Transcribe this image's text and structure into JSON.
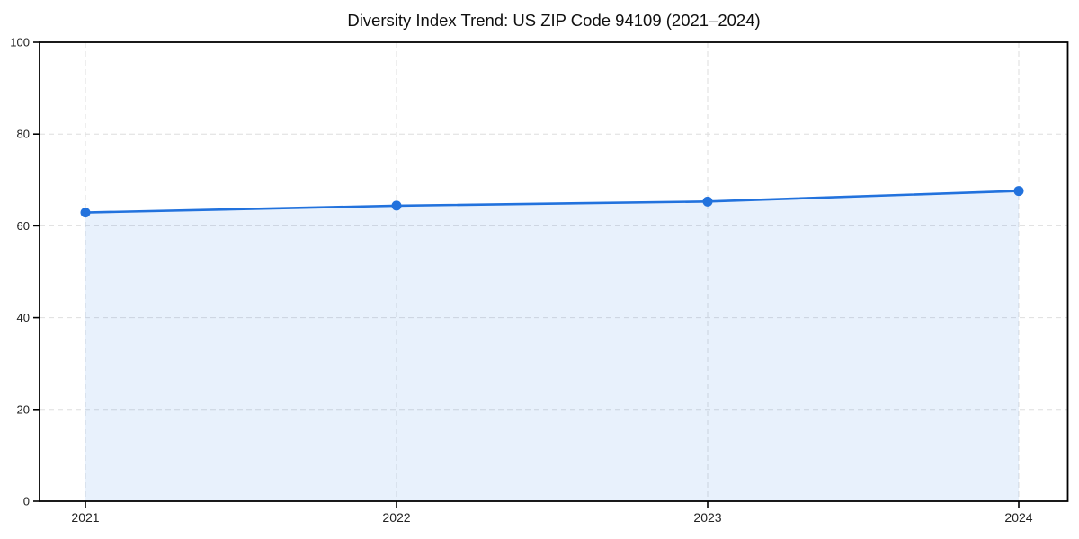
{
  "page": {
    "background": "#ffffff"
  },
  "chart_data": {
    "type": "area",
    "title": "Diversity Index Trend: US ZIP Code 94109 (2021–2024)",
    "categories": [
      "2021",
      "2022",
      "2023",
      "2024"
    ],
    "series": [
      {
        "name": "Diversity Index",
        "values": [
          62.9,
          64.4,
          65.3,
          67.6
        ]
      }
    ],
    "xlabel": "",
    "ylabel": "",
    "ylim": [
      0,
      100
    ],
    "yticks": [
      0,
      20,
      40,
      60,
      80,
      100
    ],
    "grid": "dashed, horizontal and vertical",
    "legend": "none",
    "line_color": "#2272dd",
    "marker": "circle",
    "marker_color": "#2272dd",
    "fill_color": "rgba(34,114,221,0.10)",
    "grid_color": "#dedede",
    "spine_color": "#000000",
    "tick_label_color": "#222222",
    "title_color": "#0f0f0f"
  }
}
